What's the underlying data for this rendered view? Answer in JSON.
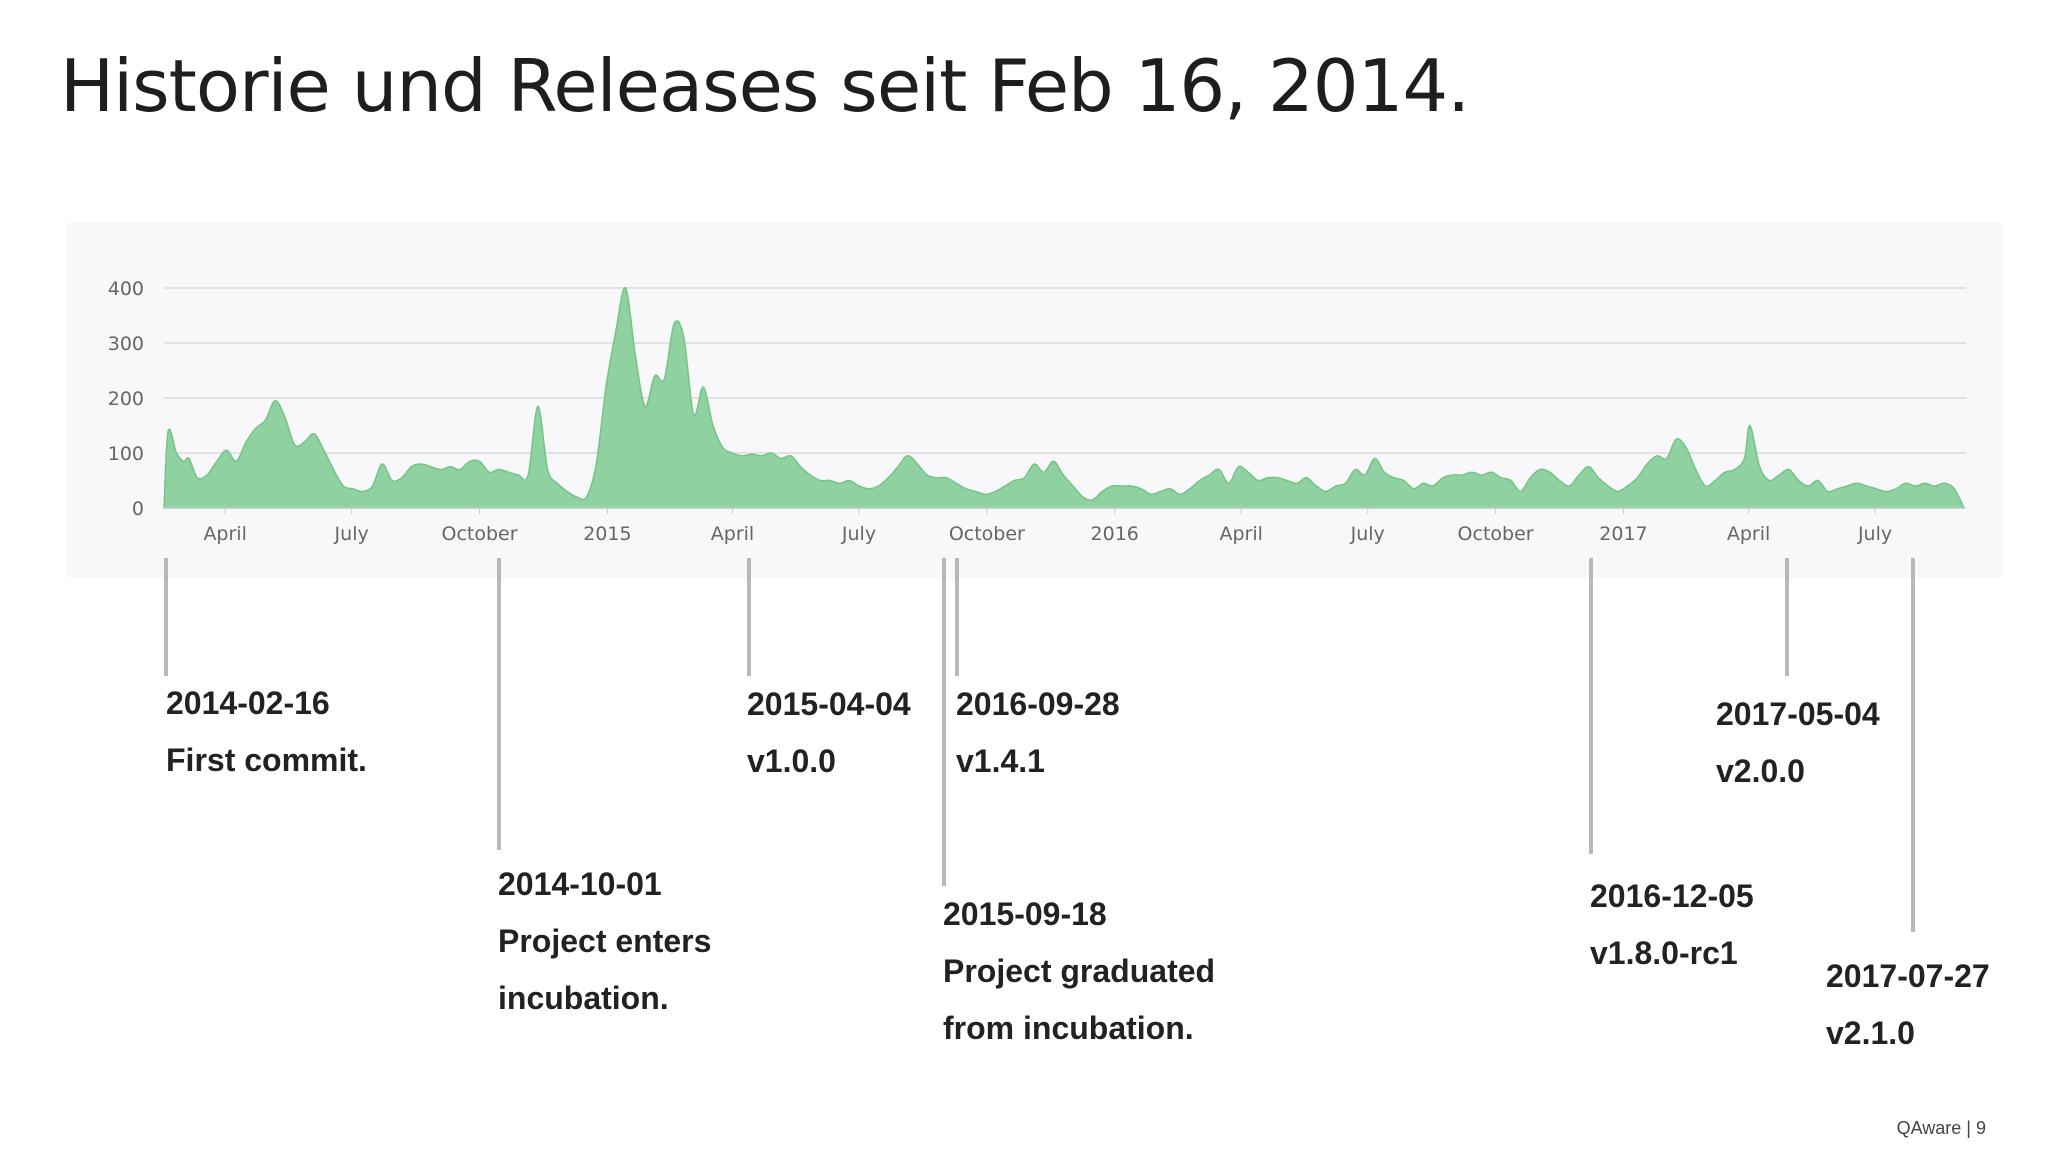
{
  "title": "Historie und Releases seit Feb 16, 2014.",
  "footer": "QAware | 9",
  "colors": {
    "area_fill": "#8fd1a0",
    "area_stroke": "#74c487",
    "grid": "#e2e2e6",
    "leader": "#b8b8b8"
  },
  "chart_data": {
    "type": "area",
    "x_start": "2014-02-16",
    "x_end": "2017-09-03",
    "ylim": [
      0,
      400
    ],
    "y_ticks": [
      0,
      100,
      200,
      300,
      400
    ],
    "x_ticks": [
      {
        "date": "2014-04-01",
        "label": "April"
      },
      {
        "date": "2014-07-01",
        "label": "July"
      },
      {
        "date": "2014-10-01",
        "label": "October"
      },
      {
        "date": "2015-01-01",
        "label": "2015"
      },
      {
        "date": "2015-04-01",
        "label": "April"
      },
      {
        "date": "2015-07-01",
        "label": "July"
      },
      {
        "date": "2015-10-01",
        "label": "October"
      },
      {
        "date": "2016-01-01",
        "label": "2016"
      },
      {
        "date": "2016-04-01",
        "label": "April"
      },
      {
        "date": "2016-07-01",
        "label": "July"
      },
      {
        "date": "2016-10-01",
        "label": "October"
      },
      {
        "date": "2017-01-01",
        "label": "2017"
      },
      {
        "date": "2017-04-01",
        "label": "April"
      },
      {
        "date": "2017-07-01",
        "label": "July"
      }
    ],
    "series": [
      {
        "points": [
          [
            "2014-02-16",
            0
          ],
          [
            "2014-02-19",
            140
          ],
          [
            "2014-02-25",
            100
          ],
          [
            "2014-03-02",
            85
          ],
          [
            "2014-03-06",
            90
          ],
          [
            "2014-03-12",
            55
          ],
          [
            "2014-03-19",
            60
          ],
          [
            "2014-03-26",
            85
          ],
          [
            "2014-04-02",
            105
          ],
          [
            "2014-04-09",
            85
          ],
          [
            "2014-04-16",
            120
          ],
          [
            "2014-04-23",
            145
          ],
          [
            "2014-04-30",
            160
          ],
          [
            "2014-05-07",
            195
          ],
          [
            "2014-05-14",
            165
          ],
          [
            "2014-05-21",
            115
          ],
          [
            "2014-05-28",
            120
          ],
          [
            "2014-06-04",
            135
          ],
          [
            "2014-06-11",
            105
          ],
          [
            "2014-06-18",
            70
          ],
          [
            "2014-06-25",
            40
          ],
          [
            "2014-07-02",
            35
          ],
          [
            "2014-07-09",
            30
          ],
          [
            "2014-07-16",
            40
          ],
          [
            "2014-07-23",
            80
          ],
          [
            "2014-07-30",
            50
          ],
          [
            "2014-08-06",
            55
          ],
          [
            "2014-08-13",
            75
          ],
          [
            "2014-08-20",
            80
          ],
          [
            "2014-08-27",
            75
          ],
          [
            "2014-09-03",
            70
          ],
          [
            "2014-09-10",
            75
          ],
          [
            "2014-09-17",
            70
          ],
          [
            "2014-09-24",
            85
          ],
          [
            "2014-10-01",
            85
          ],
          [
            "2014-10-08",
            65
          ],
          [
            "2014-10-15",
            70
          ],
          [
            "2014-10-22",
            65
          ],
          [
            "2014-10-29",
            60
          ],
          [
            "2014-11-05",
            60
          ],
          [
            "2014-11-12",
            185
          ],
          [
            "2014-11-19",
            70
          ],
          [
            "2014-11-26",
            45
          ],
          [
            "2014-12-03",
            30
          ],
          [
            "2014-12-10",
            20
          ],
          [
            "2014-12-17",
            20
          ],
          [
            "2014-12-24",
            80
          ],
          [
            "2014-12-31",
            220
          ],
          [
            "2015-01-07",
            320
          ],
          [
            "2015-01-14",
            400
          ],
          [
            "2015-01-21",
            280
          ],
          [
            "2015-01-28",
            185
          ],
          [
            "2015-02-04",
            240
          ],
          [
            "2015-02-11",
            235
          ],
          [
            "2015-02-18",
            335
          ],
          [
            "2015-02-25",
            310
          ],
          [
            "2015-03-04",
            170
          ],
          [
            "2015-03-11",
            220
          ],
          [
            "2015-03-18",
            150
          ],
          [
            "2015-03-25",
            110
          ],
          [
            "2015-04-01",
            100
          ],
          [
            "2015-04-08",
            95
          ],
          [
            "2015-04-15",
            98
          ],
          [
            "2015-04-22",
            95
          ],
          [
            "2015-04-29",
            100
          ],
          [
            "2015-05-06",
            90
          ],
          [
            "2015-05-13",
            95
          ],
          [
            "2015-05-20",
            75
          ],
          [
            "2015-05-27",
            60
          ],
          [
            "2015-06-03",
            50
          ],
          [
            "2015-06-10",
            50
          ],
          [
            "2015-06-17",
            45
          ],
          [
            "2015-06-24",
            50
          ],
          [
            "2015-07-01",
            40
          ],
          [
            "2015-07-08",
            35
          ],
          [
            "2015-07-15",
            40
          ],
          [
            "2015-07-22",
            55
          ],
          [
            "2015-07-29",
            75
          ],
          [
            "2015-08-05",
            95
          ],
          [
            "2015-08-12",
            80
          ],
          [
            "2015-08-19",
            60
          ],
          [
            "2015-08-26",
            55
          ],
          [
            "2015-09-02",
            55
          ],
          [
            "2015-09-09",
            45
          ],
          [
            "2015-09-16",
            35
          ],
          [
            "2015-09-23",
            30
          ],
          [
            "2015-09-30",
            25
          ],
          [
            "2015-10-07",
            30
          ],
          [
            "2015-10-14",
            40
          ],
          [
            "2015-10-21",
            50
          ],
          [
            "2015-10-28",
            55
          ],
          [
            "2015-11-04",
            80
          ],
          [
            "2015-11-11",
            65
          ],
          [
            "2015-11-18",
            85
          ],
          [
            "2015-11-25",
            60
          ],
          [
            "2015-12-02",
            40
          ],
          [
            "2015-12-09",
            20
          ],
          [
            "2015-12-16",
            15
          ],
          [
            "2015-12-23",
            30
          ],
          [
            "2015-12-30",
            40
          ],
          [
            "2016-01-06",
            40
          ],
          [
            "2016-01-13",
            40
          ],
          [
            "2016-01-20",
            35
          ],
          [
            "2016-01-27",
            25
          ],
          [
            "2016-02-03",
            30
          ],
          [
            "2016-02-10",
            35
          ],
          [
            "2016-02-17",
            25
          ],
          [
            "2016-02-24",
            35
          ],
          [
            "2016-03-02",
            50
          ],
          [
            "2016-03-09",
            60
          ],
          [
            "2016-03-16",
            70
          ],
          [
            "2016-03-23",
            45
          ],
          [
            "2016-03-30",
            75
          ],
          [
            "2016-04-06",
            65
          ],
          [
            "2016-04-13",
            50
          ],
          [
            "2016-04-20",
            55
          ],
          [
            "2016-04-27",
            55
          ],
          [
            "2016-05-04",
            50
          ],
          [
            "2016-05-11",
            45
          ],
          [
            "2016-05-18",
            55
          ],
          [
            "2016-05-25",
            40
          ],
          [
            "2016-06-01",
            30
          ],
          [
            "2016-06-08",
            40
          ],
          [
            "2016-06-15",
            45
          ],
          [
            "2016-06-22",
            70
          ],
          [
            "2016-06-29",
            60
          ],
          [
            "2016-07-06",
            90
          ],
          [
            "2016-07-13",
            65
          ],
          [
            "2016-07-20",
            55
          ],
          [
            "2016-07-27",
            50
          ],
          [
            "2016-08-03",
            35
          ],
          [
            "2016-08-10",
            45
          ],
          [
            "2016-08-17",
            40
          ],
          [
            "2016-08-24",
            55
          ],
          [
            "2016-08-31",
            60
          ],
          [
            "2016-09-07",
            60
          ],
          [
            "2016-09-14",
            65
          ],
          [
            "2016-09-21",
            60
          ],
          [
            "2016-09-28",
            65
          ],
          [
            "2016-10-05",
            55
          ],
          [
            "2016-10-12",
            50
          ],
          [
            "2016-10-19",
            30
          ],
          [
            "2016-10-26",
            55
          ],
          [
            "2016-11-02",
            70
          ],
          [
            "2016-11-09",
            65
          ],
          [
            "2016-11-16",
            50
          ],
          [
            "2016-11-23",
            40
          ],
          [
            "2016-11-30",
            60
          ],
          [
            "2016-12-07",
            75
          ],
          [
            "2016-12-14",
            55
          ],
          [
            "2016-12-21",
            40
          ],
          [
            "2016-12-28",
            30
          ],
          [
            "2017-01-04",
            40
          ],
          [
            "2017-01-11",
            55
          ],
          [
            "2017-01-18",
            80
          ],
          [
            "2017-01-25",
            95
          ],
          [
            "2017-02-01",
            90
          ],
          [
            "2017-02-08",
            125
          ],
          [
            "2017-02-15",
            110
          ],
          [
            "2017-02-22",
            70
          ],
          [
            "2017-03-01",
            40
          ],
          [
            "2017-03-08",
            50
          ],
          [
            "2017-03-15",
            65
          ],
          [
            "2017-03-22",
            70
          ],
          [
            "2017-03-29",
            90
          ],
          [
            "2017-04-02",
            150
          ],
          [
            "2017-04-09",
            75
          ],
          [
            "2017-04-16",
            50
          ],
          [
            "2017-04-23",
            60
          ],
          [
            "2017-04-30",
            70
          ],
          [
            "2017-05-07",
            50
          ],
          [
            "2017-05-14",
            40
          ],
          [
            "2017-05-21",
            50
          ],
          [
            "2017-05-28",
            30
          ],
          [
            "2017-06-04",
            35
          ],
          [
            "2017-06-11",
            40
          ],
          [
            "2017-06-18",
            45
          ],
          [
            "2017-06-25",
            40
          ],
          [
            "2017-07-02",
            35
          ],
          [
            "2017-07-09",
            30
          ],
          [
            "2017-07-16",
            35
          ],
          [
            "2017-07-23",
            45
          ],
          [
            "2017-07-30",
            40
          ],
          [
            "2017-08-06",
            45
          ],
          [
            "2017-08-13",
            40
          ],
          [
            "2017-08-20",
            45
          ],
          [
            "2017-08-27",
            35
          ],
          [
            "2017-09-03",
            0
          ]
        ]
      }
    ]
  },
  "milestones": [
    {
      "date": "2014-02-16",
      "label": "First commit."
    },
    {
      "date": "2014-10-01",
      "label_line1": "Project enters",
      "label_line2": "incubation."
    },
    {
      "date": "2015-04-04",
      "label": "v1.0.0"
    },
    {
      "date": "2015-09-18",
      "label_line1": "Project graduated",
      "label_line2": "from incubation."
    },
    {
      "date": "2016-09-28",
      "label": "v1.4.1"
    },
    {
      "date": "2016-12-05",
      "label": "v1.8.0-rc1"
    },
    {
      "date": "2017-05-04",
      "label": "v2.0.0"
    },
    {
      "date": "2017-07-27",
      "label": "v2.1.0"
    }
  ]
}
